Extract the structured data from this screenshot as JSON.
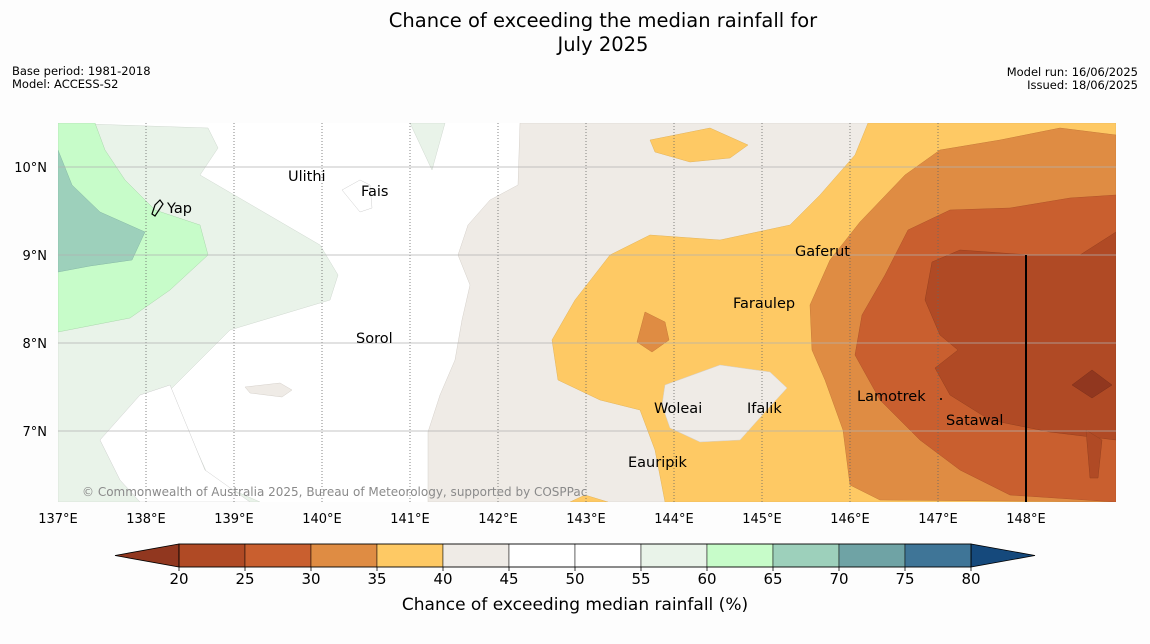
{
  "title_line1": "Chance of exceeding the median rainfall for",
  "title_line2": "July 2025",
  "base_period": "Base period: 1981-2018",
  "model": "Model: ACCESS-S2",
  "model_run": "Model run: 16/06/2025",
  "issued": "Issued: 18/06/2025",
  "copyright": "© Commonwealth of Australia 2025, Bureau of Meteorology, supported by COSPPac",
  "lon_ticks": [
    "137°E",
    "138°E",
    "139°E",
    "140°E",
    "141°E",
    "142°E",
    "143°E",
    "144°E",
    "145°E",
    "146°E",
    "147°E",
    "148°E"
  ],
  "lat_ticks": [
    "10°N",
    "9°N",
    "8°N",
    "7°N"
  ],
  "places": [
    "Ulithi",
    "Fais",
    "Yap",
    "Gaferut",
    "Faraulep",
    "Sorol",
    "Lamotrek",
    "Woleai",
    "Ifalik",
    "Satawal",
    "Eauripik"
  ],
  "colorbar": {
    "label": "Chance of exceeding median rainfall (%)",
    "ticks": [
      "20",
      "25",
      "30",
      "35",
      "40",
      "45",
      "50",
      "55",
      "60",
      "65",
      "70",
      "75",
      "80"
    ],
    "colors": [
      "#b04a25",
      "#c95f2f",
      "#df8c43",
      "#fec964",
      "#efebe6",
      "#ffffff",
      "#ffffff",
      "#e9f3e9",
      "#c7fcc9",
      "#9dd0bb",
      "#6fa3a5",
      "#3f7597"
    ],
    "under_color": "#91371f",
    "over_color": "#15497c"
  }
}
